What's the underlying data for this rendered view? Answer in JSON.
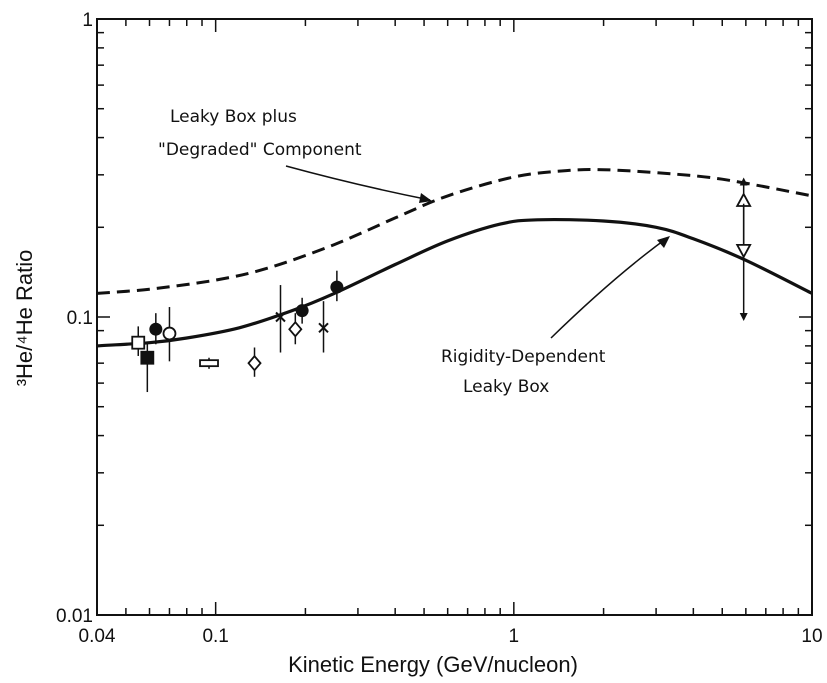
{
  "chart_data": {
    "type": "line",
    "title": "",
    "xlabel": "Kinetic Energy (GeV/nucleon)",
    "ylabel": "³He/⁴He Ratio",
    "x_scale": "log",
    "y_scale": "log",
    "xlim": [
      0.04,
      10
    ],
    "ylim": [
      0.01,
      1
    ],
    "x_ticks": [
      {
        "value": 0.04,
        "label": "0.04"
      },
      {
        "value": 0.1,
        "label": "0.1"
      },
      {
        "value": 1,
        "label": "1"
      },
      {
        "value": 10,
        "label": "10"
      }
    ],
    "y_ticks": [
      {
        "value": 0.01,
        "label": "0.01"
      },
      {
        "value": 0.1,
        "label": "0.1"
      },
      {
        "value": 1,
        "label": "1"
      }
    ],
    "grid": false,
    "series": [
      {
        "name": "Leaky Box plus \"Degraded\" Component",
        "style": "dashed",
        "x": [
          0.04,
          0.06,
          0.1,
          0.15,
          0.25,
          0.4,
          0.6,
          1.0,
          1.5,
          2.0,
          3.0,
          5.0,
          10
        ],
        "y": [
          0.12,
          0.124,
          0.133,
          0.146,
          0.175,
          0.215,
          0.255,
          0.295,
          0.31,
          0.312,
          0.305,
          0.29,
          0.255
        ]
      },
      {
        "name": "Rigidity-Dependent Leaky Box",
        "style": "solid",
        "x": [
          0.04,
          0.06,
          0.08,
          0.12,
          0.18,
          0.25,
          0.4,
          0.6,
          0.9,
          1.2,
          2.0,
          3.0,
          4.0,
          6.0,
          10
        ],
        "y": [
          0.08,
          0.082,
          0.085,
          0.092,
          0.105,
          0.12,
          0.15,
          0.18,
          0.205,
          0.212,
          0.21,
          0.2,
          0.183,
          0.155,
          0.12
        ]
      }
    ],
    "points": [
      {
        "marker": "open-square",
        "x": 0.055,
        "y": 0.082,
        "ylo": 0.074,
        "yhi": 0.093
      },
      {
        "marker": "filled-square",
        "x": 0.059,
        "y": 0.073,
        "ylo": 0.056,
        "yhi": 0.082
      },
      {
        "marker": "filled-circle",
        "x": 0.063,
        "y": 0.091,
        "ylo": 0.081,
        "yhi": 0.103
      },
      {
        "marker": "open-circle",
        "x": 0.07,
        "y": 0.088,
        "ylo": 0.071,
        "yhi": 0.108
      },
      {
        "marker": "open-rect",
        "x": 0.095,
        "y": 0.07,
        "ylo": 0.067,
        "yhi": 0.073
      },
      {
        "marker": "open-diamond",
        "x": 0.135,
        "y": 0.07,
        "ylo": 0.063,
        "yhi": 0.079
      },
      {
        "marker": "cross",
        "x": 0.165,
        "y": 0.1,
        "ylo": 0.076,
        "yhi": 0.128
      },
      {
        "marker": "open-diamond",
        "x": 0.185,
        "y": 0.091,
        "ylo": 0.081,
        "yhi": 0.103
      },
      {
        "marker": "filled-circle",
        "x": 0.195,
        "y": 0.105,
        "ylo": 0.095,
        "yhi": 0.116
      },
      {
        "marker": "cross",
        "x": 0.23,
        "y": 0.092,
        "ylo": 0.076,
        "yhi": 0.113
      },
      {
        "marker": "filled-circle",
        "x": 0.255,
        "y": 0.126,
        "ylo": 0.113,
        "yhi": 0.143
      },
      {
        "marker": "open-triangle-up",
        "x": 5.9,
        "y": 0.245,
        "ylo": 0.17,
        "yhi": 0.285
      },
      {
        "marker": "open-triangle-down",
        "x": 5.9,
        "y": 0.168,
        "ylo": 0.1,
        "yhi": 0.24
      }
    ],
    "annotations": [
      {
        "lines": [
          "Leaky Box plus",
          "\"Degraded\" Component"
        ],
        "target_series": 0
      },
      {
        "lines": [
          "Rigidity-Dependent",
          "Leaky Box"
        ],
        "target_series": 1
      }
    ]
  }
}
